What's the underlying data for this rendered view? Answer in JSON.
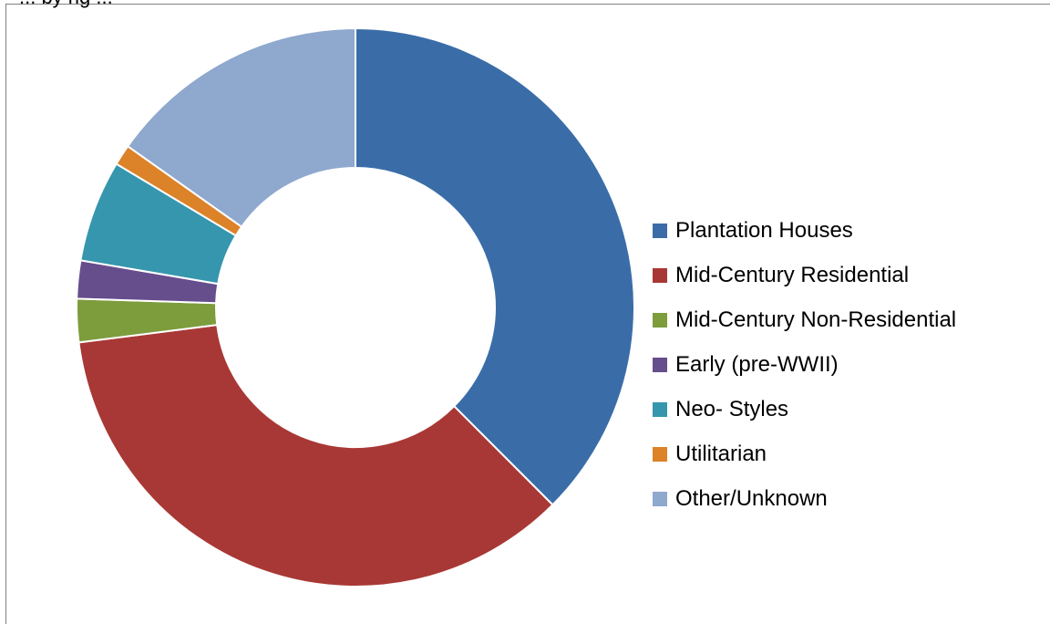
{
  "page": {
    "partial_title": "... by ng ..."
  },
  "chart_data": {
    "type": "pie",
    "variant": "donut",
    "categories": [
      "Plantation Houses",
      "Mid-Century Residential",
      "Mid-Century Non-Residential",
      "Early (pre-WWII)",
      "Neo- Styles",
      "Utilitarian",
      "Other/Unknown"
    ],
    "values": [
      37.5,
      35.5,
      2.5,
      2.2,
      5.9,
      1.2,
      15.2
    ],
    "unit": "percent",
    "colors": [
      "#3a6da8",
      "#a83835",
      "#7d9c3c",
      "#664d8c",
      "#3596ae",
      "#dc8228",
      "#8ea8ce"
    ],
    "start_angle_deg": 0,
    "direction": "clockwise",
    "legend": {
      "placement": "right",
      "entries": [
        "Plantation Houses",
        "Mid-Century Residential",
        "Mid-Century Non-Residential",
        "Early (pre-WWII)",
        "Neo- Styles",
        "Utilitarian",
        "Other/Unknown"
      ]
    }
  }
}
